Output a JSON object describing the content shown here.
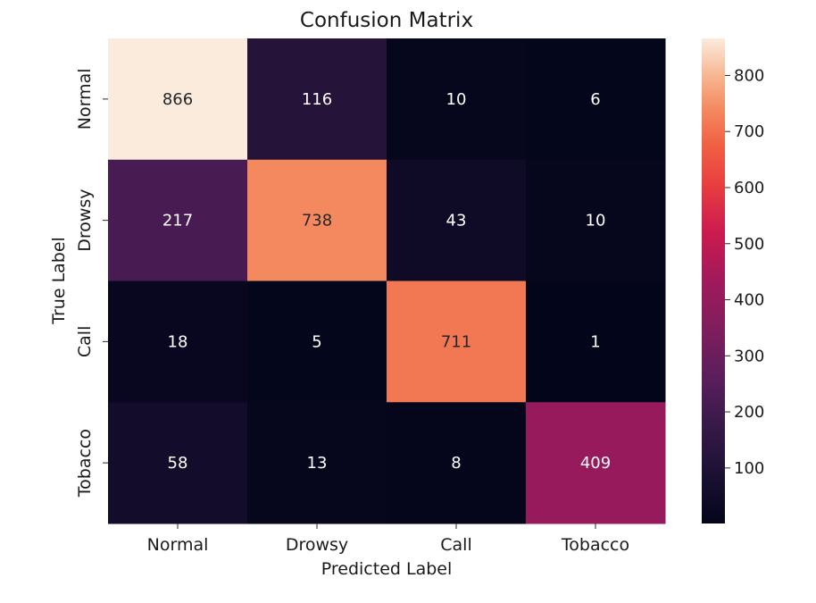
{
  "chart_data": {
    "type": "heatmap",
    "title": "Confusion Matrix",
    "xlabel": "Predicted Label",
    "ylabel": "True Label",
    "x_categories": [
      "Normal",
      "Drowsy",
      "Call",
      "Tobacco"
    ],
    "y_categories": [
      "Normal",
      "Drowsy",
      "Call",
      "Tobacco"
    ],
    "values": [
      [
        866,
        116,
        10,
        6
      ],
      [
        217,
        738,
        43,
        10
      ],
      [
        18,
        5,
        711,
        1
      ],
      [
        58,
        13,
        8,
        409
      ]
    ],
    "colormap": "rocket",
    "colorbar": {
      "range": [
        1,
        866
      ],
      "ticks": [
        100,
        200,
        300,
        400,
        500,
        600,
        700,
        800
      ]
    },
    "colors": {
      "label_light": "#ffffff",
      "label_dark": "#262626"
    }
  }
}
